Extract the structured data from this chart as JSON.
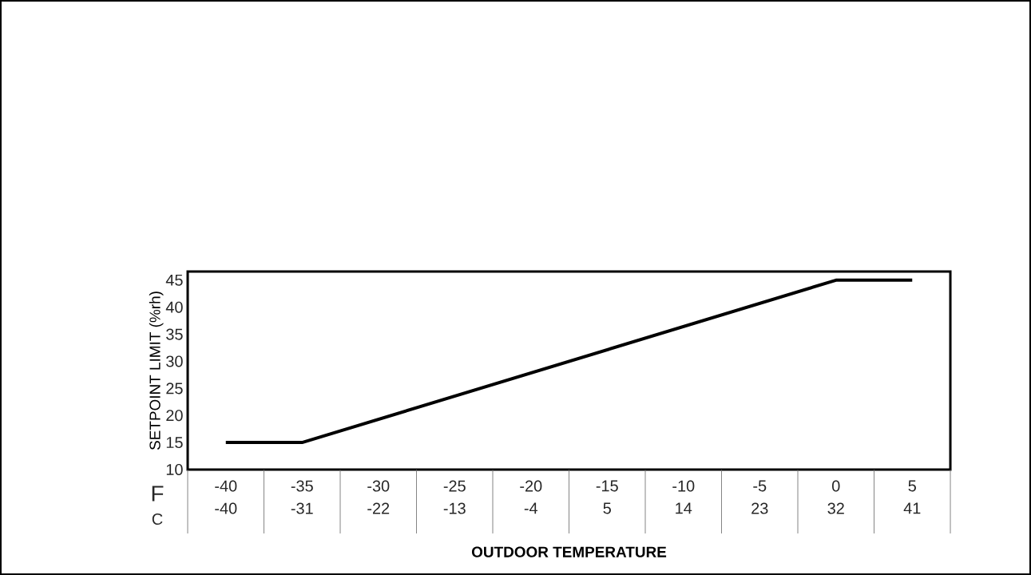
{
  "chart_data": {
    "type": "line",
    "xlabel": "OUTDOOR TEMPERATURE",
    "ylabel": "SETPOINT LIMIT (%rh)",
    "x": [
      -40,
      -35,
      0,
      5
    ],
    "series": [
      {
        "color": "#000000",
        "values": [
          15,
          15,
          45,
          45
        ]
      }
    ],
    "xlim": [
      -42.5,
      7.5
    ],
    "xticks": [
      -40,
      -35,
      -30,
      -25,
      -20,
      -15,
      -10,
      -5,
      0,
      5
    ],
    "x2lim": [
      -44.5,
      45.5
    ],
    "x2ticks": [
      -40,
      -31,
      -22,
      -13,
      -4,
      5,
      14,
      23,
      32,
      41
    ],
    "ylim": [
      10,
      46.6
    ],
    "yticks": [
      10,
      15,
      20,
      25,
      30,
      35,
      40,
      45
    ],
    "annotations": [
      "F",
      "C"
    ]
  }
}
